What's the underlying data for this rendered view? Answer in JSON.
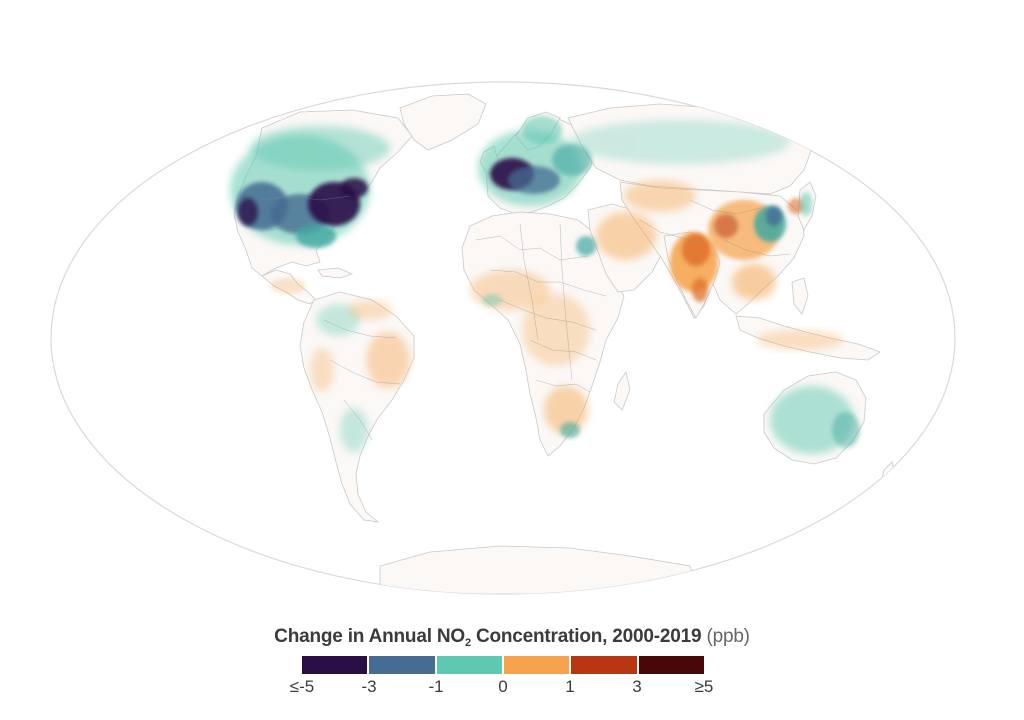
{
  "legend": {
    "title_main": "Change in Annual NO",
    "title_sub": "2",
    "title_rest": " Concentration, 2000-2019",
    "unit": "(ppb)",
    "colors": [
      "#2a0f46",
      "#456c93",
      "#5ec9b0",
      "#f5a24a",
      "#b83712",
      "#4a0707"
    ],
    "ticks": [
      "≤-5",
      "-3",
      "-1",
      "0",
      "1",
      "3",
      "≥5"
    ]
  },
  "map": {
    "projection": "mollweide",
    "scale_colors": {
      "strong_decrease": "#2a0f46",
      "decrease": "#456c93",
      "slight_decrease": "#5ec9b0",
      "slight_increase": "#f5a24a",
      "increase": "#b83712",
      "strong_increase": "#4a0707"
    }
  }
}
